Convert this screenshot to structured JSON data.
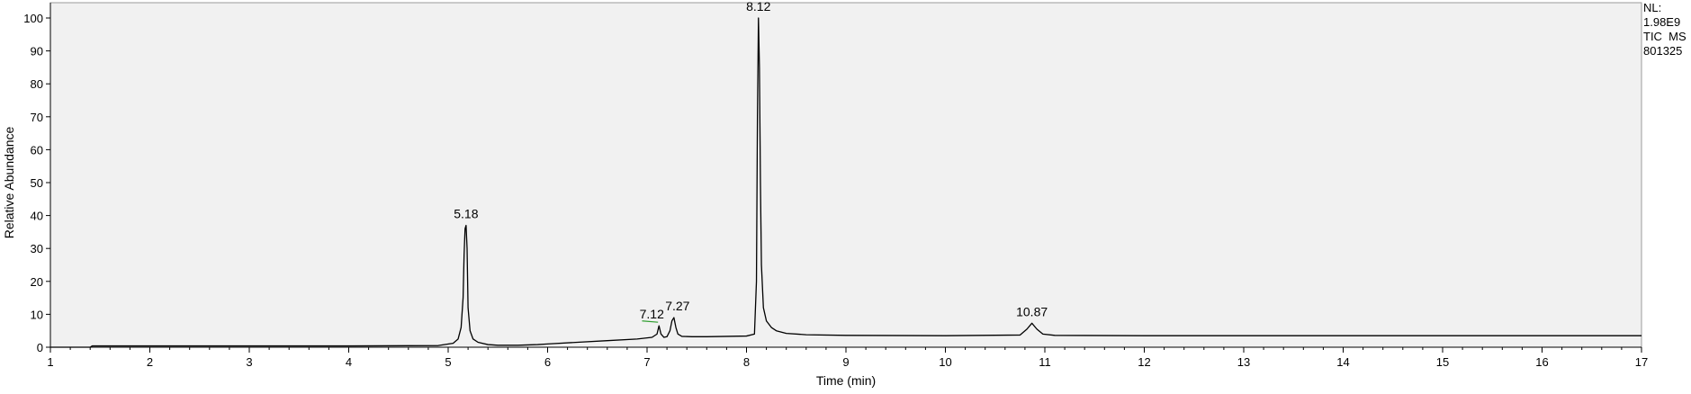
{
  "chart_data": {
    "type": "line",
    "xlabel": "Time (min)",
    "ylabel": "Relative Abundance",
    "xlim": [
      1,
      17
    ],
    "ylim": [
      0,
      100
    ],
    "x_ticks": [
      1,
      2,
      3,
      4,
      5,
      6,
      7,
      8,
      9,
      10,
      11,
      12,
      13,
      14,
      15,
      16,
      17
    ],
    "y_ticks": [
      0,
      10,
      20,
      30,
      40,
      50,
      60,
      70,
      80,
      90,
      100
    ],
    "grid": false,
    "info": [
      "NL:",
      "1.98E9",
      "TIC  MS",
      "801325"
    ],
    "peaks": [
      {
        "label": "5.18",
        "x": 5.18,
        "y": 37
      },
      {
        "label": "7.12",
        "x": 7.12,
        "y": 6.5
      },
      {
        "label": "7.27",
        "x": 7.27,
        "y": 9
      },
      {
        "label": "8.12",
        "x": 8.12,
        "y": 100
      },
      {
        "label": "10.87",
        "x": 10.87,
        "y": 7.3
      }
    ],
    "series": [
      {
        "color": "#000000",
        "x": [
          1.0,
          1.4,
          1.42,
          2.0,
          3.0,
          4.0,
          4.9,
          5.05,
          5.1,
          5.13,
          5.15,
          5.16,
          5.17,
          5.18,
          5.19,
          5.2,
          5.22,
          5.25,
          5.3,
          5.4,
          5.5,
          5.7,
          5.9,
          6.0,
          6.3,
          6.6,
          6.9,
          7.05,
          7.1,
          7.12,
          7.14,
          7.17,
          7.2,
          7.23,
          7.25,
          7.27,
          7.29,
          7.31,
          7.35,
          7.45,
          7.6,
          7.8,
          8.0,
          8.08,
          8.1,
          8.11,
          8.12,
          8.13,
          8.14,
          8.15,
          8.17,
          8.2,
          8.25,
          8.3,
          8.4,
          8.6,
          9.0,
          10.0,
          10.75,
          10.82,
          10.87,
          10.92,
          10.98,
          11.1,
          12.0,
          13.0,
          14.0,
          15.0,
          16.0,
          17.0
        ],
        "y": [
          0,
          0,
          0.4,
          0.4,
          0.4,
          0.4,
          0.5,
          1.2,
          2.5,
          6,
          15,
          28,
          36,
          37,
          30,
          12,
          5,
          2.5,
          1.5,
          0.8,
          0.6,
          0.6,
          0.8,
          1,
          1.5,
          2,
          2.5,
          3,
          4,
          6.5,
          4,
          3,
          3.2,
          5,
          8,
          9,
          6,
          4,
          3.3,
          3.2,
          3.2,
          3.3,
          3.4,
          4,
          20,
          70,
          100,
          85,
          50,
          25,
          12,
          8,
          6,
          5,
          4.2,
          3.8,
          3.6,
          3.5,
          3.7,
          5.5,
          7.3,
          5.5,
          4,
          3.6,
          3.5,
          3.5,
          3.5,
          3.5,
          3.5,
          3.5
        ]
      },
      {
        "color": "#2f9e2f",
        "x": [
          6.95,
          7.11
        ],
        "y": [
          8.0,
          7.6
        ]
      }
    ]
  }
}
